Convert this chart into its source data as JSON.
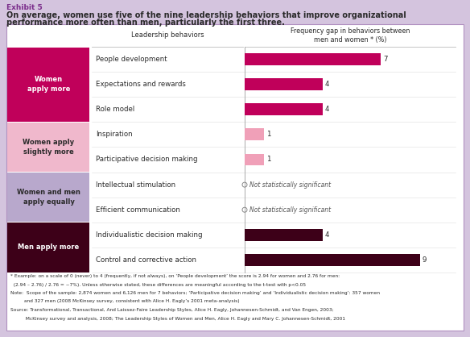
{
  "exhibit_label": "Exhibit 5",
  "title_line1": "On average, women use five of the nine leadership behaviors that improve organizational",
  "title_line2": "performance more often than men, particularly the first three.",
  "col1_header": "Leadership behaviors",
  "col2_header": "Frequency gap in behaviors between\nmen and women * (%)",
  "rows": [
    {
      "label": "People development",
      "value": 7,
      "bar_color": "#c0005a",
      "group": "women_more"
    },
    {
      "label": "Expectations and rewards",
      "value": 4,
      "bar_color": "#c0005a",
      "group": "women_more"
    },
    {
      "label": "Role model",
      "value": 4,
      "bar_color": "#c0005a",
      "group": "women_more"
    },
    {
      "label": "Inspiration",
      "value": 1,
      "bar_color": "#f0a0b8",
      "group": "women_slightly"
    },
    {
      "label": "Participative decision making",
      "value": 1,
      "bar_color": "#f0a0b8",
      "group": "women_slightly"
    },
    {
      "label": "Intellectual stimulation",
      "value": null,
      "bar_color": null,
      "group": "equal"
    },
    {
      "label": "Efficient communication",
      "value": null,
      "bar_color": null,
      "group": "equal"
    },
    {
      "label": "Individualistic decision making",
      "value": 4,
      "bar_color": "#3d0018",
      "group": "men_more"
    },
    {
      "label": "Control and corrective action",
      "value": 9,
      "bar_color": "#3d0018",
      "group": "men_more"
    }
  ],
  "groups": [
    {
      "key": "women_more",
      "label": "Women\napply more",
      "color": "#c0005a",
      "rows": [
        0,
        1,
        2
      ]
    },
    {
      "key": "women_slightly",
      "label": "Women apply\nslightly more",
      "color": "#f0b8cc",
      "rows": [
        3,
        4
      ]
    },
    {
      "key": "equal",
      "label": "Women and men\napply equally",
      "color": "#b8a8cc",
      "rows": [
        5,
        6
      ]
    },
    {
      "key": "men_more",
      "label": "Men apply more",
      "color": "#3d0018",
      "rows": [
        7,
        8
      ]
    }
  ],
  "footnote1": "* Example: on a scale of 0 (never) to 4 (frequently, if not always), on ‘People development’ the score is 2.94 for women and 2.76 for men:",
  "footnote2": "  (2.94 – 2.76) / 2.76 = ~7%). Unless otherwise stated, these differences are meaningful according to the t-test with p<0.05",
  "footnote3": "Note:  Scope of the sample: 2,874 women and 6,126 men for 7 behaviors; ‘Participative decision making’ and ‘Individualistic decision making’: 357 women",
  "footnote4": "         and 327 men (2008 McKinsey survey, consistent with Alice H. Eagly’s 2001 meta-analysis)",
  "footnote5": "Source: Transformational, Transactional, And Laissez-Faire Leadership Styles, Alice H. Eagly, Johannesen-Schmidt, and Van Engen, 2003;",
  "footnote6": "          McKinsey survey and analysis, 2008; The Leadership Styles of Women and Men, Alice H. Eagly and Mary C. Johannesen-Schmidt, 2001",
  "background_outer": "#d4c4de",
  "background_inner": "#ffffff",
  "title_color": "#2a2a2a",
  "exhibit_color": "#7b2d8b",
  "max_bar_value": 10
}
